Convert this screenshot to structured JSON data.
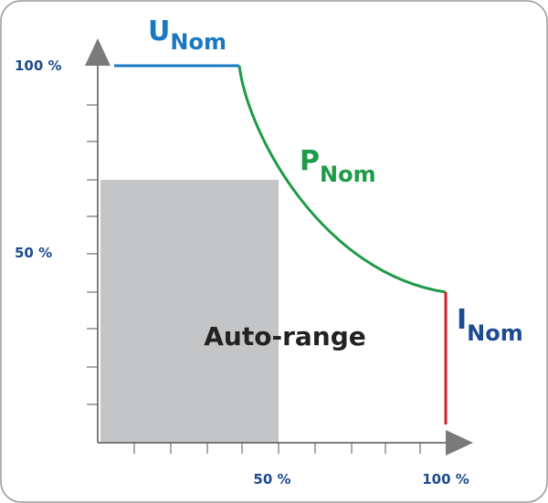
{
  "curve_labels": {
    "voltage": {
      "symbol": "U",
      "subscript": "Nom"
    },
    "power": {
      "symbol": "P",
      "subscript": "Nom"
    },
    "current": {
      "symbol": "I",
      "subscript": "Nom"
    }
  },
  "y_axis": {
    "top_label": "100 %",
    "mid_label": "50 %"
  },
  "x_axis": {
    "mid_label": "50 %",
    "right_label": "100 %"
  },
  "region_label": "Auto-range"
}
